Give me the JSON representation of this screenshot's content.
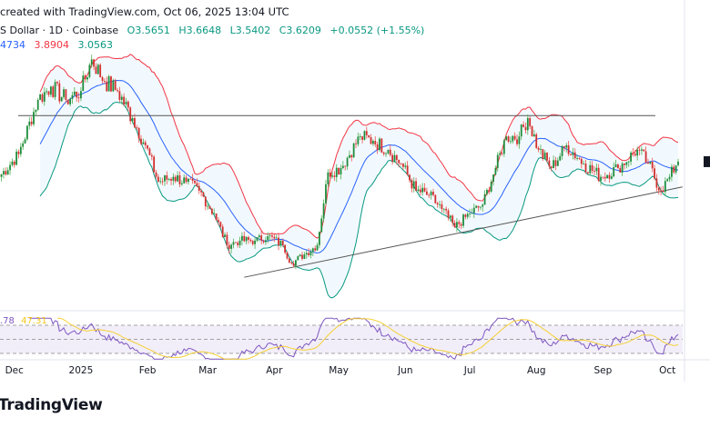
{
  "header": {
    "credit": "created with TradingView.com, Oct 06, 2025 13:04 UTC",
    "symbol": "S Dollar · 1D · Coinbase",
    "open": "O3.5651",
    "high": "H3.6648",
    "low": "L3.5402",
    "close": "C3.6209",
    "change": "+0.0552 (+1.55%)",
    "bb_basis": "4734",
    "bb_upper": "3.8904",
    "bb_lower": "3.0563"
  },
  "rsi": {
    "value": ".78",
    "ma": "47.31"
  },
  "logo": "TradingView",
  "colors": {
    "up": "#1e8c3c",
    "down": "#d32f2f",
    "bb_upper": "#f23645",
    "bb_basis": "#2962ff",
    "bb_lower": "#089981",
    "rsi": "#7e57c2",
    "rsi_ma": "#f5d033"
  },
  "chart_data": {
    "type": "candlestick",
    "interval": "1D",
    "last_candle": {
      "open": 3.5651,
      "high": 3.6648,
      "low": 3.5402,
      "close": 3.6209
    },
    "approx_closes": [
      [
        "2024-11-24",
        3.38
      ],
      [
        "2024-12-03",
        3.74
      ],
      [
        "2024-12-12",
        4.6
      ],
      [
        "2024-12-18",
        4.81
      ],
      [
        "2024-12-25",
        4.6
      ],
      [
        "2025-01-01",
        4.74
      ],
      [
        "2025-01-06",
        5.24
      ],
      [
        "2025-01-12",
        4.89
      ],
      [
        "2025-01-18",
        4.74
      ],
      [
        "2025-01-25",
        4.31
      ],
      [
        "2025-01-31",
        3.88
      ],
      [
        "2025-02-06",
        3.3
      ],
      [
        "2025-02-13",
        3.38
      ],
      [
        "2025-02-19",
        3.3
      ],
      [
        "2025-02-25",
        3.16
      ],
      [
        "2025-03-04",
        2.8
      ],
      [
        "2025-03-10",
        2.3
      ],
      [
        "2025-03-16",
        2.37
      ],
      [
        "2025-03-23",
        2.37
      ],
      [
        "2025-03-29",
        2.44
      ],
      [
        "2025-04-05",
        2.3
      ],
      [
        "2025-04-09",
        2.01
      ],
      [
        "2025-04-15",
        2.15
      ],
      [
        "2025-04-21",
        2.3
      ],
      [
        "2025-04-26",
        3.45
      ],
      [
        "2025-05-02",
        3.52
      ],
      [
        "2025-05-11",
        4.02
      ],
      [
        "2025-05-17",
        3.95
      ],
      [
        "2025-05-24",
        3.81
      ],
      [
        "2025-05-30",
        3.59
      ],
      [
        "2025-06-06",
        3.16
      ],
      [
        "2025-06-12",
        3.09
      ],
      [
        "2025-06-18",
        2.87
      ],
      [
        "2025-06-24",
        2.58
      ],
      [
        "2025-07-01",
        2.8
      ],
      [
        "2025-07-07",
        2.94
      ],
      [
        "2025-07-13",
        3.52
      ],
      [
        "2025-07-18",
        4.02
      ],
      [
        "2025-07-24",
        4.02
      ],
      [
        "2025-07-28",
        4.31
      ],
      [
        "2025-08-02",
        3.81
      ],
      [
        "2025-08-08",
        3.52
      ],
      [
        "2025-08-15",
        3.88
      ],
      [
        "2025-08-23",
        3.59
      ],
      [
        "2025-08-31",
        3.38
      ],
      [
        "2025-09-08",
        3.52
      ],
      [
        "2025-09-17",
        3.81
      ],
      [
        "2025-09-22",
        3.59
      ],
      [
        "2025-09-28",
        3.16
      ],
      [
        "2025-10-02",
        3.38
      ],
      [
        "2025-10-05",
        3.56
      ],
      [
        "2025-10-06",
        3.6209
      ]
    ],
    "indicators": {
      "bollinger": {
        "length": 20,
        "mult": 2
      },
      "rsi": {
        "length": 14,
        "ma_length": 14,
        "levels": [
          70,
          50,
          30
        ]
      }
    },
    "annotations": {
      "horizontal_line": 4.35,
      "trendline": [
        [
          "2025-03-18",
          1.79
        ],
        [
          "2025-10-08",
          3.22
        ]
      ]
    },
    "x_ticks": [
      "Dec",
      "2025",
      "Feb",
      "Mar",
      "Apr",
      "May",
      "Jun",
      "Jul",
      "Aug",
      "Sep",
      "Oct"
    ],
    "grid": false
  }
}
